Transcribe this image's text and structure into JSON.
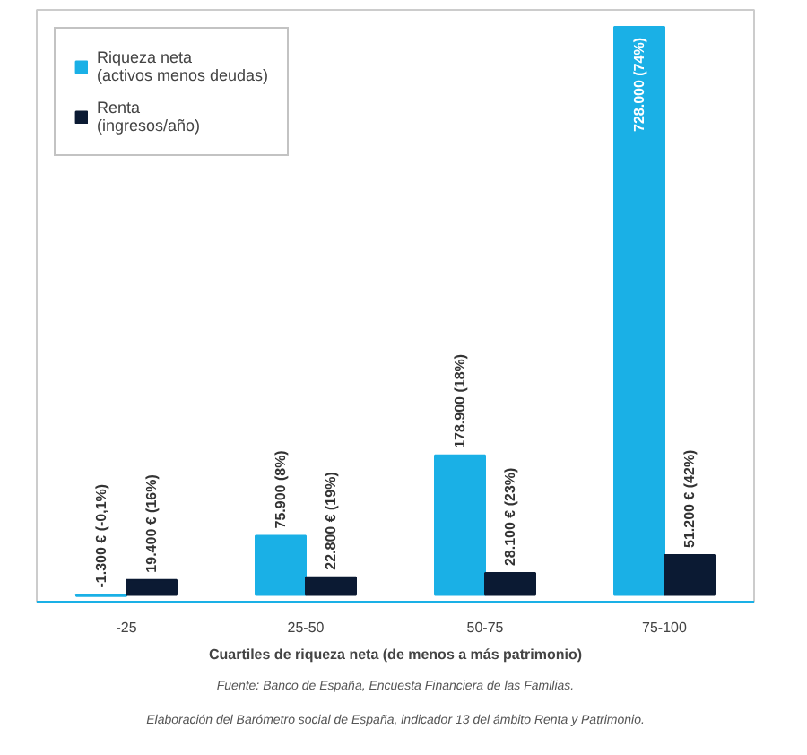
{
  "chart_data": {
    "type": "bar",
    "categories": [
      "-25",
      "25-50",
      "50-75",
      "75-100"
    ],
    "series": [
      {
        "name": "Riqueza neta\n(activos menos deudas)",
        "color": "#1ab0e6",
        "values": [
          -1300,
          75900,
          178900,
          728000
        ],
        "value_labels": [
          "-1.300 € (-0,1%)",
          "75.900 (8%)",
          "178.900 (18%)",
          "728.000 (74%)"
        ]
      },
      {
        "name": "Renta\n(ingresos/año)",
        "color": "#0b1a33",
        "values": [
          19400,
          22800,
          28100,
          51200
        ],
        "value_labels": [
          "19.400 € (16%)",
          "22.800 € (19%)",
          "28.100 € (23%)",
          "51.200 € (42%)"
        ]
      }
    ],
    "xlabel": "Cuartiles de riqueza neta (de menos a más patrimonio)",
    "annotations": [
      "Fuente: Banco de España, Encuesta Financiera de las Familias.",
      "Elaboración del Barómetro social de España, indicador 13 del ámbito Renta y Patrimonio."
    ],
    "legend": "top left",
    "grid": false
  }
}
